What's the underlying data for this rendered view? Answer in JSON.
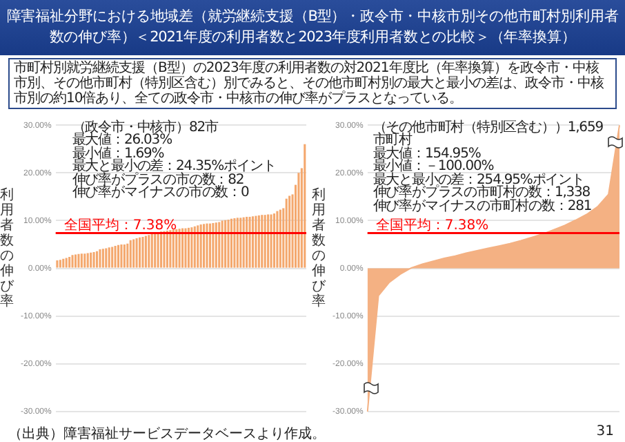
{
  "chart_data": [
    {
      "type": "bar",
      "title": "障害福祉分野における地域差（就労継続支援（B型）・政令市・中核市別その他市町村別利用者数の伸び率）＜2021年度の利用者数と2023年度利用者数との比較＞（年率換算）",
      "subtitle": "市町村別就労継続支援（B型）の2023年度の利用者数の対2021年度比（年率換算）を政令市・中核市別、その他市町村（特別区含む）別でみると、その他市町村別の最大と最小の差は、政令市・中核市別の約10倍あり、全ての政令市・中核市の伸び率がプラスとなっている。",
      "ylabel": "利用者数の伸び率",
      "annotations": [
        "（政令市・中核市）82市",
        "最大値：26.03%",
        "最小値：1.69%",
        "最大と最小の差：24.35%ポイント",
        "伸び率がプラスの市の数：82",
        "伸び率がマイナスの市の数：0",
        "（出典）障害福祉サービスデータベースより作成。"
      ],
      "categories": [
        null,
        null,
        null,
        null,
        null,
        null,
        null,
        null,
        null,
        null,
        null,
        null,
        null,
        null,
        null,
        null,
        null,
        null,
        null,
        null,
        null,
        null,
        null,
        null,
        null,
        null,
        null,
        null,
        null,
        null,
        null,
        null,
        null,
        null,
        null,
        null,
        null,
        null,
        null,
        null,
        null,
        null,
        null,
        null,
        null,
        null,
        null,
        null,
        null,
        null,
        null,
        null,
        null,
        null,
        null,
        null,
        null,
        null,
        null,
        null,
        null,
        null,
        null,
        null,
        null,
        null,
        null,
        null,
        null,
        null,
        null,
        null,
        null,
        null,
        null,
        null,
        null,
        null,
        null,
        null,
        null,
        null
      ],
      "values": [
        1.69,
        1.8,
        2.0,
        2.2,
        2.4,
        2.8,
        2.9,
        3.0,
        3.1,
        3.1,
        3.2,
        3.3,
        3.4,
        3.6,
        4.0,
        4.1,
        4.2,
        4.4,
        4.5,
        4.7,
        4.9,
        5.0,
        5.0,
        5.2,
        5.9,
        6.1,
        6.3,
        6.5,
        6.6,
        6.8,
        7.0,
        7.3,
        7.5,
        7.6,
        7.7,
        7.8,
        7.9,
        8.0,
        8.1,
        8.2,
        8.3,
        8.4,
        8.4,
        8.5,
        8.6,
        8.8,
        9.0,
        9.2,
        9.3,
        9.4,
        9.4,
        9.5,
        9.6,
        9.7,
        10.0,
        10.1,
        10.2,
        10.4,
        10.5,
        10.6,
        10.6,
        10.7,
        10.8,
        10.8,
        10.9,
        11.0,
        11.1,
        11.2,
        11.2,
        11.3,
        11.3,
        11.5,
        12.0,
        12.3,
        12.6,
        14.6,
        15.2,
        15.5,
        17.5,
        20.0,
        21.0,
        26.03
      ],
      "color": "#f4a86e",
      "ylim": [
        -30,
        30
      ],
      "yticks": [
        {
          "value": -30,
          "label": "-30.00%"
        },
        {
          "value": -20,
          "label": "-20.00%"
        },
        {
          "value": -10,
          "label": "-10.00%"
        },
        {
          "value": 0,
          "label": "0.00%"
        },
        {
          "value": 10,
          "label": "10.00%"
        },
        {
          "value": 20,
          "label": "20.00%"
        },
        {
          "value": 30,
          "label": "30.00%"
        }
      ],
      "grid": "y",
      "ref_lines": [
        {
          "axis": "y",
          "value": 7.38,
          "label": "全国平均：7.38%",
          "color": "#ff0000"
        }
      ]
    },
    {
      "type": "area",
      "ylabel": "利用者数の伸び率",
      "annotations": [
        "（その他市町村（特別区含む））1,659市町村",
        "最大値：154.95%",
        "最小値：－100.00%",
        "最大と最小の差：254.95%ポイント",
        "伸び率がプラスの市町村の数：1,338",
        "伸び率がマイナスの市町村の数：281",
        "31"
      ],
      "categories": [
        null,
        null,
        null,
        null,
        null,
        null,
        null,
        null,
        null,
        null,
        null,
        null,
        null,
        null,
        null,
        null,
        null,
        null,
        null,
        null,
        null,
        null,
        null,
        null
      ],
      "values": [
        -30,
        -5.7,
        -2.9,
        -1.2,
        0.1,
        0.9,
        1.5,
        2.1,
        2.6,
        3.2,
        3.7,
        4.2,
        4.7,
        5.2,
        5.8,
        6.5,
        7.2,
        8.1,
        9.0,
        10.1,
        11.3,
        12.9,
        15.5,
        30
      ],
      "color": "#f4b183",
      "ylim": [
        -30,
        30
      ],
      "yticks": [
        {
          "value": -30,
          "label": "-30.00%"
        },
        {
          "value": -20,
          "label": "-20.00%"
        },
        {
          "value": -10,
          "label": "-10.00%"
        },
        {
          "value": 0,
          "label": "0.00%"
        },
        {
          "value": 10,
          "label": "10.00%"
        },
        {
          "value": 20,
          "label": "20.00%"
        },
        {
          "value": 30,
          "label": "30.00%"
        }
      ],
      "grid": "y",
      "ref_lines": [
        {
          "axis": "y",
          "value": 7.38,
          "label": "全国平均：7.38%",
          "color": "#ff0000"
        }
      ]
    }
  ]
}
